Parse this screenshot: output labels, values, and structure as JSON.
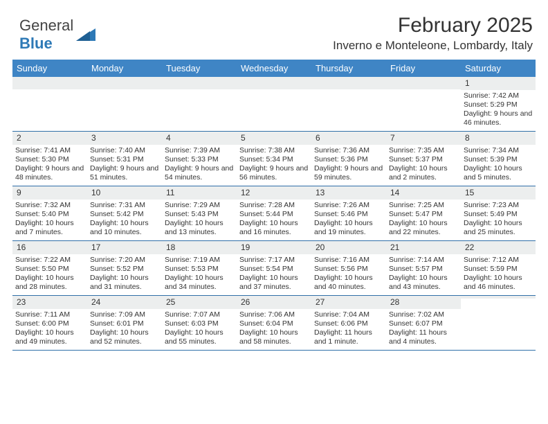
{
  "logo": {
    "word1": "General",
    "word2": "Blue"
  },
  "title": {
    "month": "February 2025",
    "location": "Inverno e Monteleone, Lombardy, Italy"
  },
  "colors": {
    "header_bg": "#3f85c5",
    "header_text": "#ffffff",
    "daynum_bg": "#eceeee",
    "week_border": "#2f6fa8",
    "body_text": "#333333",
    "logo_blue": "#2d79b6"
  },
  "day_headers": [
    "Sunday",
    "Monday",
    "Tuesday",
    "Wednesday",
    "Thursday",
    "Friday",
    "Saturday"
  ],
  "weeks": [
    [
      {
        "num": "",
        "lines": []
      },
      {
        "num": "",
        "lines": []
      },
      {
        "num": "",
        "lines": []
      },
      {
        "num": "",
        "lines": []
      },
      {
        "num": "",
        "lines": []
      },
      {
        "num": "",
        "lines": []
      },
      {
        "num": "1",
        "lines": [
          "Sunrise: 7:42 AM",
          "Sunset: 5:29 PM",
          "Daylight: 9 hours and 46 minutes."
        ]
      }
    ],
    [
      {
        "num": "2",
        "lines": [
          "Sunrise: 7:41 AM",
          "Sunset: 5:30 PM",
          "Daylight: 9 hours and 48 minutes."
        ]
      },
      {
        "num": "3",
        "lines": [
          "Sunrise: 7:40 AM",
          "Sunset: 5:31 PM",
          "Daylight: 9 hours and 51 minutes."
        ]
      },
      {
        "num": "4",
        "lines": [
          "Sunrise: 7:39 AM",
          "Sunset: 5:33 PM",
          "Daylight: 9 hours and 54 minutes."
        ]
      },
      {
        "num": "5",
        "lines": [
          "Sunrise: 7:38 AM",
          "Sunset: 5:34 PM",
          "Daylight: 9 hours and 56 minutes."
        ]
      },
      {
        "num": "6",
        "lines": [
          "Sunrise: 7:36 AM",
          "Sunset: 5:36 PM",
          "Daylight: 9 hours and 59 minutes."
        ]
      },
      {
        "num": "7",
        "lines": [
          "Sunrise: 7:35 AM",
          "Sunset: 5:37 PM",
          "Daylight: 10 hours and 2 minutes."
        ]
      },
      {
        "num": "8",
        "lines": [
          "Sunrise: 7:34 AM",
          "Sunset: 5:39 PM",
          "Daylight: 10 hours and 5 minutes."
        ]
      }
    ],
    [
      {
        "num": "9",
        "lines": [
          "Sunrise: 7:32 AM",
          "Sunset: 5:40 PM",
          "Daylight: 10 hours and 7 minutes."
        ]
      },
      {
        "num": "10",
        "lines": [
          "Sunrise: 7:31 AM",
          "Sunset: 5:42 PM",
          "Daylight: 10 hours and 10 minutes."
        ]
      },
      {
        "num": "11",
        "lines": [
          "Sunrise: 7:29 AM",
          "Sunset: 5:43 PM",
          "Daylight: 10 hours and 13 minutes."
        ]
      },
      {
        "num": "12",
        "lines": [
          "Sunrise: 7:28 AM",
          "Sunset: 5:44 PM",
          "Daylight: 10 hours and 16 minutes."
        ]
      },
      {
        "num": "13",
        "lines": [
          "Sunrise: 7:26 AM",
          "Sunset: 5:46 PM",
          "Daylight: 10 hours and 19 minutes."
        ]
      },
      {
        "num": "14",
        "lines": [
          "Sunrise: 7:25 AM",
          "Sunset: 5:47 PM",
          "Daylight: 10 hours and 22 minutes."
        ]
      },
      {
        "num": "15",
        "lines": [
          "Sunrise: 7:23 AM",
          "Sunset: 5:49 PM",
          "Daylight: 10 hours and 25 minutes."
        ]
      }
    ],
    [
      {
        "num": "16",
        "lines": [
          "Sunrise: 7:22 AM",
          "Sunset: 5:50 PM",
          "Daylight: 10 hours and 28 minutes."
        ]
      },
      {
        "num": "17",
        "lines": [
          "Sunrise: 7:20 AM",
          "Sunset: 5:52 PM",
          "Daylight: 10 hours and 31 minutes."
        ]
      },
      {
        "num": "18",
        "lines": [
          "Sunrise: 7:19 AM",
          "Sunset: 5:53 PM",
          "Daylight: 10 hours and 34 minutes."
        ]
      },
      {
        "num": "19",
        "lines": [
          "Sunrise: 7:17 AM",
          "Sunset: 5:54 PM",
          "Daylight: 10 hours and 37 minutes."
        ]
      },
      {
        "num": "20",
        "lines": [
          "Sunrise: 7:16 AM",
          "Sunset: 5:56 PM",
          "Daylight: 10 hours and 40 minutes."
        ]
      },
      {
        "num": "21",
        "lines": [
          "Sunrise: 7:14 AM",
          "Sunset: 5:57 PM",
          "Daylight: 10 hours and 43 minutes."
        ]
      },
      {
        "num": "22",
        "lines": [
          "Sunrise: 7:12 AM",
          "Sunset: 5:59 PM",
          "Daylight: 10 hours and 46 minutes."
        ]
      }
    ],
    [
      {
        "num": "23",
        "lines": [
          "Sunrise: 7:11 AM",
          "Sunset: 6:00 PM",
          "Daylight: 10 hours and 49 minutes."
        ]
      },
      {
        "num": "24",
        "lines": [
          "Sunrise: 7:09 AM",
          "Sunset: 6:01 PM",
          "Daylight: 10 hours and 52 minutes."
        ]
      },
      {
        "num": "25",
        "lines": [
          "Sunrise: 7:07 AM",
          "Sunset: 6:03 PM",
          "Daylight: 10 hours and 55 minutes."
        ]
      },
      {
        "num": "26",
        "lines": [
          "Sunrise: 7:06 AM",
          "Sunset: 6:04 PM",
          "Daylight: 10 hours and 58 minutes."
        ]
      },
      {
        "num": "27",
        "lines": [
          "Sunrise: 7:04 AM",
          "Sunset: 6:06 PM",
          "Daylight: 11 hours and 1 minute."
        ]
      },
      {
        "num": "28",
        "lines": [
          "Sunrise: 7:02 AM",
          "Sunset: 6:07 PM",
          "Daylight: 11 hours and 4 minutes."
        ]
      },
      {
        "num": "",
        "lines": []
      }
    ]
  ]
}
